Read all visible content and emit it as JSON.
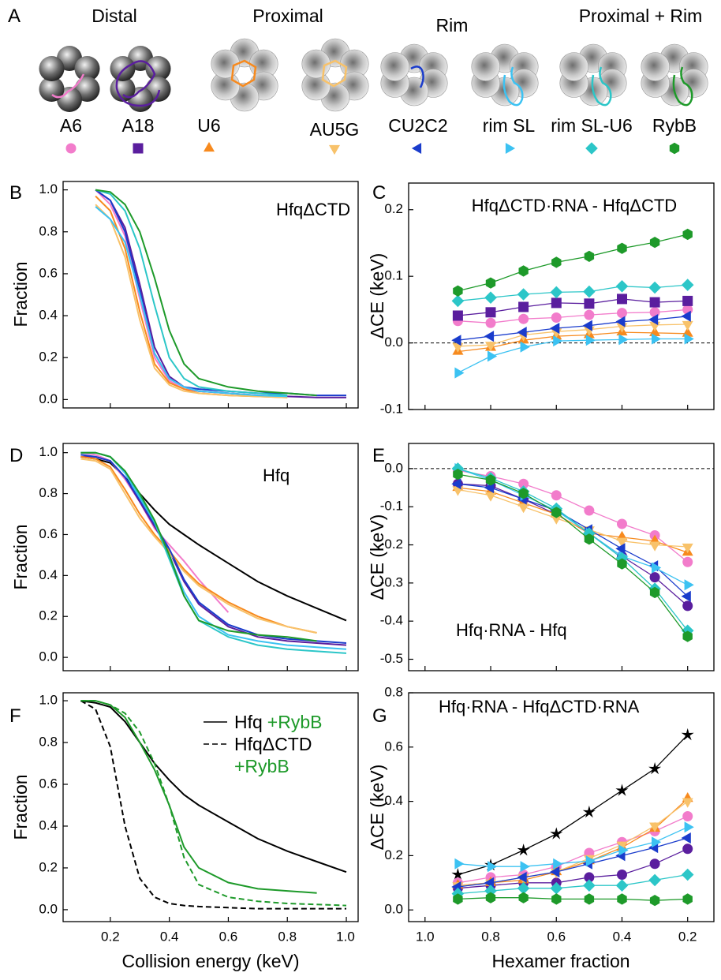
{
  "panel_a": {
    "panel": "A",
    "groups": [
      "Distal",
      "Proximal",
      "Rim",
      "Proximal + Rim"
    ],
    "rnas": [
      {
        "label": "A6",
        "color": "#f27ccb",
        "marker": "circle"
      },
      {
        "label": "A18",
        "color": "#5a1e9e",
        "marker": "square"
      },
      {
        "label": "U6",
        "color": "#f78a1e",
        "marker": "triangle-up"
      },
      {
        "label": "AU5G",
        "color": "#f8c26a",
        "marker": "triangle-down"
      },
      {
        "label": "CU2C2",
        "color": "#1a3ccc",
        "marker": "triangle-left"
      },
      {
        "label": "rim SL",
        "color": "#3cc2f2",
        "marker": "triangle-right"
      },
      {
        "label": "rim SL-U6",
        "color": "#2cc6c8",
        "marker": "diamond"
      },
      {
        "label": "RybB",
        "color": "#1e9a2a",
        "marker": "hexagon"
      }
    ]
  },
  "chart_data": [
    {
      "type": "line",
      "panel": "B",
      "title": "HfqΔCTD",
      "ylabel": "Fraction",
      "xtick_labels": false,
      "x": [
        0.1,
        0.15,
        0.2,
        0.25,
        0.3,
        0.35,
        0.4,
        0.45,
        0.5,
        0.6,
        0.7,
        0.8,
        0.9,
        1.0
      ],
      "xlim": [
        0.04,
        1.04
      ],
      "xticks": [
        0.2,
        0.4,
        0.6,
        0.8,
        {
          "value": 1,
          "label": "1.0"
        }
      ],
      "ylim": [
        -0.04,
        1.04
      ],
      "yticks": [
        {
          "value": 0,
          "label": "0.0"
        },
        0.2,
        0.4,
        0.6,
        0.8,
        {
          "value": 1,
          "label": "1.0"
        }
      ],
      "series": [
        {
          "color": "#f27ccb",
          "values": [
            null,
            1.0,
            0.93,
            0.78,
            0.48,
            0.2,
            0.09,
            0.05,
            0.04,
            0.03,
            0.02,
            0.015,
            null,
            null
          ]
        },
        {
          "color": "#5a1e9e",
          "values": [
            null,
            1.0,
            0.95,
            0.82,
            0.55,
            0.25,
            0.11,
            0.06,
            0.04,
            0.03,
            0.02,
            0.015,
            0.01,
            0.01
          ]
        },
        {
          "color": "#f78a1e",
          "values": [
            null,
            0.97,
            0.9,
            0.72,
            0.42,
            0.17,
            0.08,
            0.05,
            0.03,
            0.02,
            0.015,
            0.01,
            null,
            null
          ]
        },
        {
          "color": "#f8c26a",
          "values": [
            null,
            0.93,
            0.86,
            0.68,
            0.38,
            0.15,
            0.07,
            0.04,
            0.03,
            0.02,
            0.015,
            0.01,
            null,
            null
          ]
        },
        {
          "color": "#1a3ccc",
          "values": [
            null,
            1.0,
            0.95,
            0.8,
            0.52,
            0.22,
            0.1,
            0.06,
            0.05,
            0.04,
            0.03,
            0.03,
            0.02,
            0.02
          ]
        },
        {
          "color": "#3cc2f2",
          "values": [
            null,
            0.92,
            0.86,
            0.75,
            0.5,
            0.22,
            0.1,
            0.06,
            0.04,
            0.03,
            0.02,
            0.015,
            null,
            null
          ]
        },
        {
          "color": "#2cc6c8",
          "values": [
            null,
            1.0,
            0.98,
            0.9,
            0.72,
            0.45,
            0.2,
            0.1,
            0.06,
            0.04,
            0.03,
            0.02,
            null,
            null
          ]
        },
        {
          "color": "#1e9a2a",
          "values": [
            null,
            1.0,
            0.99,
            0.93,
            0.8,
            0.58,
            0.33,
            0.17,
            0.1,
            0.06,
            0.04,
            0.03,
            0.02,
            null
          ]
        }
      ]
    },
    {
      "type": "line",
      "panel": "C",
      "title": "HfqΔCTD·RNA - HfqΔCTD",
      "ylabel": "ΔCE (keV)",
      "xtick_labels": false,
      "zero_line": true,
      "x": [
        0.9,
        0.8,
        0.7,
        0.6,
        0.5,
        0.4,
        0.3,
        0.2
      ],
      "xlim": [
        1.05,
        0.12
      ],
      "xticks": [
        {
          "value": 1,
          "label": "1.0"
        },
        0.8,
        0.6,
        0.4,
        0.2
      ],
      "ylim": [
        -0.1,
        0.24
      ],
      "yticks": [
        -0.1,
        {
          "value": 0,
          "label": "0.0"
        },
        0.1,
        0.2
      ],
      "series": [
        {
          "color": "#f27ccb",
          "marker": "circle",
          "values": [
            0.033,
            0.03,
            0.036,
            0.038,
            0.042,
            0.045,
            0.046,
            0.05
          ]
        },
        {
          "color": "#5a1e9e",
          "marker": "square",
          "values": [
            0.041,
            0.046,
            0.054,
            0.06,
            0.059,
            0.066,
            0.061,
            0.063
          ]
        },
        {
          "color": "#f78a1e",
          "marker": "triangle-up",
          "values": [
            -0.013,
            -0.007,
            0.004,
            0.01,
            0.012,
            0.016,
            0.015,
            0.014
          ]
        },
        {
          "color": "#f8c26a",
          "marker": "triangle-down",
          "values": [
            -0.005,
            -0.003,
            0.012,
            0.017,
            0.02,
            0.025,
            0.027,
            0.028
          ]
        },
        {
          "color": "#1a3ccc",
          "marker": "triangle-left",
          "values": [
            0.004,
            0.01,
            0.016,
            0.022,
            0.026,
            0.032,
            0.035,
            0.04
          ]
        },
        {
          "color": "#3cc2f2",
          "marker": "triangle-right",
          "values": [
            -0.045,
            -0.02,
            -0.006,
            0.003,
            0.004,
            0.005,
            0.006,
            0.006
          ]
        },
        {
          "color": "#2cc6c8",
          "marker": "diamond",
          "values": [
            0.063,
            0.068,
            0.073,
            0.076,
            0.077,
            0.085,
            0.083,
            0.087
          ]
        },
        {
          "color": "#1e9a2a",
          "marker": "hexagon",
          "values": [
            0.078,
            0.09,
            0.108,
            0.121,
            0.13,
            0.142,
            0.151,
            0.163
          ]
        }
      ]
    },
    {
      "type": "line",
      "panel": "D",
      "title": "Hfq",
      "ylabel": "Fraction",
      "xtick_labels": false,
      "x": [
        0.1,
        0.15,
        0.2,
        0.25,
        0.3,
        0.35,
        0.4,
        0.45,
        0.5,
        0.6,
        0.7,
        0.8,
        0.9,
        1.0
      ],
      "xlim": [
        0.04,
        1.04
      ],
      "xticks": [
        0.2,
        0.4,
        0.6,
        0.8,
        {
          "value": 1,
          "label": "1.0"
        }
      ],
      "ylim": [
        -0.065,
        1.045
      ],
      "yticks": [
        {
          "value": 0,
          "label": "0.0"
        },
        0.2,
        0.4,
        0.6,
        0.8,
        {
          "value": 1,
          "label": "1.0"
        }
      ],
      "series": [
        {
          "color": "#000000",
          "values": [
            0.98,
            0.97,
            0.95,
            0.88,
            0.8,
            0.72,
            0.65,
            0.6,
            0.55,
            0.46,
            0.37,
            0.3,
            0.24,
            0.18
          ]
        },
        {
          "color": "#f27ccb",
          "values": [
            1.0,
            0.99,
            0.96,
            0.87,
            0.76,
            0.63,
            0.55,
            0.47,
            0.38,
            0.22,
            null,
            null,
            null,
            null
          ]
        },
        {
          "color": "#5a1e9e",
          "values": [
            0.98,
            0.98,
            0.96,
            0.88,
            0.76,
            0.64,
            0.52,
            0.37,
            0.26,
            0.15,
            0.1,
            0.08,
            0.07,
            0.06
          ]
        },
        {
          "color": "#f78a1e",
          "values": [
            0.98,
            0.97,
            0.93,
            0.82,
            0.7,
            0.6,
            0.52,
            0.43,
            0.36,
            0.27,
            0.2,
            0.15,
            0.12,
            null
          ]
        },
        {
          "color": "#f8c26a",
          "values": [
            0.97,
            0.96,
            0.92,
            0.8,
            0.68,
            0.59,
            0.51,
            0.42,
            0.35,
            0.26,
            0.19,
            0.15,
            0.12,
            null
          ]
        },
        {
          "color": "#1a3ccc",
          "values": [
            0.99,
            0.98,
            0.96,
            0.88,
            0.77,
            0.65,
            0.53,
            0.38,
            0.27,
            0.16,
            0.11,
            0.09,
            0.08,
            0.07
          ]
        },
        {
          "color": "#3cc2f2",
          "values": [
            1.0,
            1.0,
            0.98,
            0.9,
            0.78,
            0.66,
            0.5,
            0.32,
            0.2,
            0.11,
            0.08,
            0.06,
            0.05,
            0.04
          ]
        },
        {
          "color": "#2cc6c8",
          "values": [
            1.0,
            1.0,
            0.98,
            0.91,
            0.79,
            0.66,
            0.48,
            0.3,
            0.18,
            0.1,
            0.06,
            0.04,
            0.03,
            0.02
          ]
        },
        {
          "color": "#1e9a2a",
          "values": [
            1.0,
            1.0,
            0.98,
            0.91,
            0.8,
            0.67,
            0.5,
            0.3,
            0.18,
            0.13,
            0.11,
            0.1,
            0.08,
            null
          ]
        }
      ]
    },
    {
      "type": "line",
      "panel": "E",
      "title": "Hfq·RNA - Hfq",
      "ylabel": "ΔCE (keV)",
      "xtick_labels": false,
      "zero_line": true,
      "x": [
        0.9,
        0.8,
        0.7,
        0.6,
        0.5,
        0.4,
        0.3,
        0.2
      ],
      "xlim": [
        1.05,
        0.12
      ],
      "xticks": [
        {
          "value": 1,
          "label": "1.0"
        },
        0.8,
        0.6,
        0.4,
        0.2
      ],
      "ylim": [
        -0.53,
        0.066
      ],
      "yticks": [
        -0.5,
        -0.4,
        -0.3,
        -0.2,
        -0.1,
        {
          "value": 0,
          "label": "0.0"
        }
      ],
      "series": [
        {
          "color": "#f27ccb",
          "marker": "circle",
          "values": [
            -0.005,
            -0.02,
            -0.04,
            -0.07,
            -0.11,
            -0.145,
            -0.175,
            -0.245
          ]
        },
        {
          "color": "#5a1e9e",
          "marker": "circle",
          "values": [
            -0.04,
            -0.045,
            -0.08,
            -0.12,
            -0.17,
            -0.23,
            -0.285,
            -0.36
          ]
        },
        {
          "color": "#f78a1e",
          "marker": "triangle-up",
          "values": [
            -0.05,
            -0.06,
            -0.09,
            -0.12,
            -0.17,
            -0.18,
            -0.19,
            -0.22
          ]
        },
        {
          "color": "#f8c26a",
          "marker": "triangle-down",
          "values": [
            -0.055,
            -0.07,
            -0.1,
            -0.13,
            -0.16,
            -0.19,
            -0.2,
            -0.205
          ]
        },
        {
          "color": "#1a3ccc",
          "marker": "triangle-left",
          "values": [
            -0.04,
            -0.05,
            -0.08,
            -0.11,
            -0.16,
            -0.21,
            -0.255,
            -0.335
          ]
        },
        {
          "color": "#3cc2f2",
          "marker": "triangle-right",
          "values": [
            0.0,
            -0.03,
            -0.07,
            -0.11,
            -0.17,
            -0.23,
            -0.26,
            -0.305
          ]
        },
        {
          "color": "#2cc6c8",
          "marker": "diamond",
          "values": [
            0.0,
            -0.025,
            -0.06,
            -0.105,
            -0.17,
            -0.235,
            -0.315,
            -0.425
          ]
        },
        {
          "color": "#1e9a2a",
          "marker": "hexagon",
          "values": [
            -0.015,
            -0.03,
            -0.065,
            -0.115,
            -0.185,
            -0.25,
            -0.325,
            -0.44
          ]
        }
      ]
    },
    {
      "type": "line",
      "panel": "F",
      "ylabel": "Fraction",
      "xlabel": "Collision energy (keV)",
      "xtick_labels": true,
      "x": [
        0.1,
        0.15,
        0.2,
        0.25,
        0.3,
        0.35,
        0.4,
        0.45,
        0.5,
        0.6,
        0.7,
        0.8,
        0.9,
        1.0
      ],
      "xlim": [
        0.04,
        1.04
      ],
      "xticks": [
        0.2,
        0.4,
        0.6,
        0.8,
        {
          "value": 1,
          "label": "1.0"
        }
      ],
      "ylim": [
        -0.057,
        1.038
      ],
      "yticks": [
        {
          "value": 0,
          "label": "0.0"
        },
        0.2,
        0.4,
        0.6,
        0.8,
        {
          "value": 1,
          "label": "1.0"
        }
      ],
      "series": [
        {
          "name": "Hfq",
          "color": "#000000",
          "dash": false,
          "values": [
            1.0,
            0.99,
            0.97,
            0.9,
            0.8,
            0.7,
            0.62,
            0.55,
            0.5,
            0.42,
            0.34,
            0.28,
            0.23,
            0.18
          ]
        },
        {
          "name": "+RybB",
          "color": "#1e9a2a",
          "dash": false,
          "values": [
            1.0,
            1.0,
            0.98,
            0.92,
            0.8,
            0.67,
            0.5,
            0.3,
            0.2,
            0.13,
            0.1,
            0.09,
            0.08,
            null
          ]
        },
        {
          "name": "HfqΔCTD",
          "color": "#000000",
          "dash": true,
          "values": [
            1.0,
            0.96,
            0.78,
            0.4,
            0.15,
            0.06,
            0.03,
            0.02,
            0.015,
            0.01,
            0.005,
            0.005,
            0.005,
            0.005
          ]
        },
        {
          "name": "+RybB",
          "color": "#1e9a2a",
          "dash": true,
          "values": [
            1.0,
            1.0,
            0.98,
            0.94,
            0.85,
            0.7,
            0.5,
            0.25,
            0.12,
            0.06,
            0.04,
            0.03,
            0.025,
            0.02
          ]
        }
      ]
    },
    {
      "type": "line",
      "panel": "G",
      "title": "Hfq·RNA - HfqΔCTD·RNA",
      "ylabel": "ΔCE (keV)",
      "xlabel": "Hexamer fraction",
      "xtick_labels": true,
      "x": [
        0.9,
        0.8,
        0.7,
        0.6,
        0.5,
        0.4,
        0.3,
        0.2
      ],
      "xlim": [
        1.05,
        0.12
      ],
      "xticks": [
        {
          "value": 1,
          "label": "1.0"
        },
        0.8,
        0.6,
        0.4,
        0.2
      ],
      "ylim": [
        -0.043,
        0.8
      ],
      "yticks": [
        {
          "value": 0,
          "label": "0.0"
        },
        0.2,
        0.4,
        0.6,
        0.8
      ],
      "series": [
        {
          "color": "#000000",
          "marker": "star",
          "values": [
            0.13,
            0.165,
            0.22,
            0.28,
            0.36,
            0.44,
            0.52,
            0.645
          ]
        },
        {
          "color": "#f27ccb",
          "marker": "circle",
          "values": [
            0.1,
            0.12,
            0.13,
            0.16,
            0.21,
            0.25,
            0.29,
            0.345
          ]
        },
        {
          "color": "#5a1e9e",
          "marker": "circle",
          "values": [
            0.08,
            0.09,
            0.1,
            0.1,
            0.12,
            0.13,
            0.17,
            0.225
          ]
        },
        {
          "color": "#f78a1e",
          "marker": "triangle-up",
          "values": [
            0.09,
            0.1,
            0.11,
            0.14,
            0.18,
            0.23,
            0.3,
            0.41
          ]
        },
        {
          "color": "#f8c26a",
          "marker": "triangle-down",
          "values": [
            0.09,
            0.1,
            0.12,
            0.14,
            0.19,
            0.24,
            0.31,
            0.4
          ]
        },
        {
          "color": "#1a3ccc",
          "marker": "triangle-left",
          "values": [
            0.085,
            0.1,
            0.12,
            0.14,
            0.17,
            0.2,
            0.23,
            0.265
          ]
        },
        {
          "color": "#3cc2f2",
          "marker": "triangle-right",
          "values": [
            0.17,
            0.16,
            0.16,
            0.17,
            0.18,
            0.22,
            0.25,
            0.305
          ]
        },
        {
          "color": "#2cc6c8",
          "marker": "diamond",
          "values": [
            0.06,
            0.07,
            0.08,
            0.08,
            0.09,
            0.09,
            0.11,
            0.13
          ]
        },
        {
          "color": "#1e9a2a",
          "marker": "hexagon",
          "values": [
            0.04,
            0.045,
            0.045,
            0.04,
            0.04,
            0.04,
            0.035,
            0.04
          ]
        }
      ]
    }
  ]
}
